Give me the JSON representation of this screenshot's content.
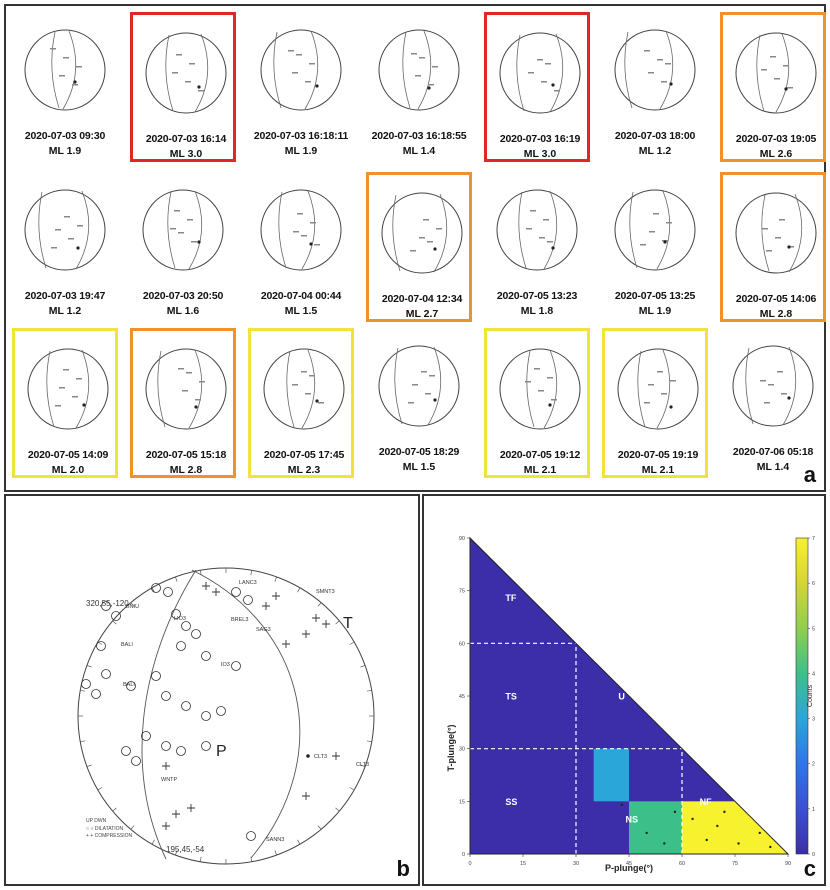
{
  "panel_a": {
    "label": "a",
    "mag_prefix": "ML",
    "events": [
      {
        "date": "2020-07-03 09:30",
        "ml": "1.9",
        "highlight": "none"
      },
      {
        "date": "2020-07-03 16:14",
        "ml": "3.0",
        "highlight": "red"
      },
      {
        "date": "2020-07-03 16:18:11",
        "ml": "1.9",
        "highlight": "none"
      },
      {
        "date": "2020-07-03 16:18:55",
        "ml": "1.4",
        "highlight": "none"
      },
      {
        "date": "2020-07-03 16:19",
        "ml": "3.0",
        "highlight": "red"
      },
      {
        "date": "2020-07-03 18:00",
        "ml": "1.2",
        "highlight": "none"
      },
      {
        "date": "2020-07-03 19:05",
        "ml": "2.6",
        "highlight": "orange"
      },
      {
        "date": "2020-07-03 19:47",
        "ml": "1.2",
        "highlight": "none"
      },
      {
        "date": "2020-07-03 20:50",
        "ml": "1.6",
        "highlight": "none"
      },
      {
        "date": "2020-07-04 00:44",
        "ml": "1.5",
        "highlight": "none"
      },
      {
        "date": "2020-07-04 12:34",
        "ml": "2.7",
        "highlight": "orange"
      },
      {
        "date": "2020-07-05 13:23",
        "ml": "1.8",
        "highlight": "none"
      },
      {
        "date": "2020-07-05 13:25",
        "ml": "1.9",
        "highlight": "none"
      },
      {
        "date": "2020-07-05 14:06",
        "ml": "2.8",
        "highlight": "orange"
      },
      {
        "date": "2020-07-05 14:09",
        "ml": "2.0",
        "highlight": "yellow"
      },
      {
        "date": "2020-07-05 15:18",
        "ml": "2.8",
        "highlight": "orange"
      },
      {
        "date": "2020-07-05 17:45",
        "ml": "2.3",
        "highlight": "yellow"
      },
      {
        "date": "2020-07-05 18:29",
        "ml": "1.5",
        "highlight": "none"
      },
      {
        "date": "2020-07-05 19:12",
        "ml": "2.1",
        "highlight": "yellow"
      },
      {
        "date": "2020-07-05 19:19",
        "ml": "2.1",
        "highlight": "yellow"
      },
      {
        "date": "2020-07-06 05:18",
        "ml": "1.4",
        "highlight": "none"
      }
    ]
  },
  "panel_b": {
    "label": "b",
    "plane1": "320,55,-120",
    "plane2": "195,45,-54",
    "t_axis": "T",
    "p_axis": "P",
    "stations": [
      "LANC3",
      "SMNT3",
      "BALI",
      "BALI",
      "LIO3",
      "CLT3",
      "CLT3",
      "SANN3",
      "BNIU",
      "WNTP",
      "BREL3",
      "SAG3",
      "IO3"
    ],
    "legend": {
      "header": "UP  DWN",
      "dilatation": "DILATATION",
      "compression": "COMPRESSION"
    }
  },
  "panel_c": {
    "label": "c",
    "colorbar_label": "Counts",
    "colorbar_ticks": [
      "0",
      "1",
      "2",
      "3",
      "4",
      "5",
      "6",
      "7"
    ],
    "regions": [
      "TF",
      "TS",
      "U",
      "SS",
      "NS",
      "NF"
    ]
  },
  "chart_data": {
    "type": "heatmap",
    "xlabel": "P-plunge(°)",
    "ylabel": "T-plunge(°)",
    "xlim": [
      0,
      90
    ],
    "ylim": [
      0,
      90
    ],
    "x_ticks": [
      0,
      15,
      30,
      45,
      60,
      75,
      90
    ],
    "y_ticks": [
      0,
      15,
      30,
      45,
      60,
      75,
      90
    ],
    "bin_size": 15,
    "background_count": 0,
    "cells": [
      {
        "p": [
          35,
          45
        ],
        "t": [
          15,
          30
        ],
        "count": 3
      },
      {
        "p": [
          45,
          60
        ],
        "t": [
          0,
          15
        ],
        "count": 4
      },
      {
        "p": [
          60,
          75
        ],
        "t": [
          0,
          15
        ],
        "count": 7
      },
      {
        "p": [
          75,
          90
        ],
        "t": [
          0,
          15
        ],
        "count": 7
      }
    ],
    "colorbar": {
      "min": 0,
      "max": 7,
      "label": "Counts"
    },
    "colors": {
      "low": "#3b2ea8",
      "mid_blue": "#2aa6d9",
      "mid_green": "#3dbf8a",
      "high": "#f7f22d"
    }
  }
}
